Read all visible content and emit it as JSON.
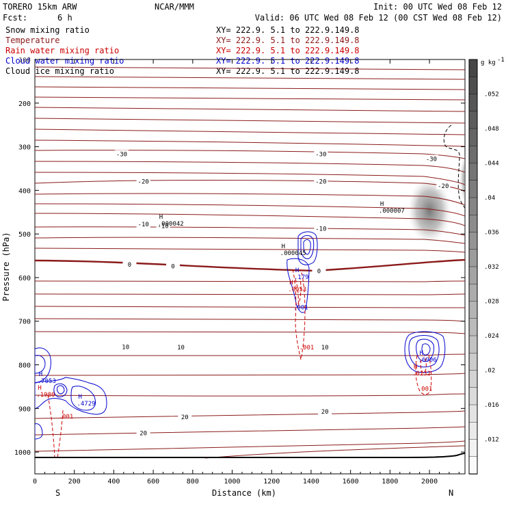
{
  "header": {
    "model": "TORERO  15km ARW",
    "org": "NCAR/MMM",
    "init": "Init: 00 UTC Wed 08 Feb 12",
    "fcst_label": "Fcst:",
    "fcst_value": "6 h",
    "valid": "Valid: 06 UTC Wed 08 Feb 12 (00 CST Wed 08 Feb 12)"
  },
  "legend": [
    {
      "name": "Snow mixing ratio",
      "xy": "XY= 222.9.  5.1 to 222.9.149.8",
      "color": "#000000"
    },
    {
      "name": "Temperature",
      "xy": "XY= 222.9.  5.1 to 222.9.149.8",
      "color": "#8b1a1a"
    },
    {
      "name": "Rain water mixing ratio",
      "xy": "XY= 222.9.  5.1 to 222.9.149.8",
      "color": "#cc0000"
    },
    {
      "name": "Cloud water mixing ratio",
      "xy": "XY= 222.9.  5.1 to 222.9.149.8",
      "color": "#0000cc"
    },
    {
      "name": "Cloud ice mixing ratio",
      "xy": "XY= 222.9.  5.1 to 222.9.149.8",
      "color": "#000000"
    }
  ],
  "chart_data": {
    "type": "contour",
    "xlabel": "Distance (km)",
    "ylabel": "Pressure (hPa)",
    "xlim": [
      0,
      2180
    ],
    "ylim": [
      1050,
      100
    ],
    "x_ticks": [
      0,
      200,
      400,
      600,
      800,
      1000,
      1200,
      1400,
      1600,
      1800,
      2000
    ],
    "y_ticks": [
      200,
      300,
      400,
      500,
      600,
      700,
      800,
      900,
      1000
    ],
    "y_tick_top": "100",
    "x_end_labels": {
      "left": "S",
      "right": "N"
    },
    "colorbar": {
      "unit": "g kg",
      "unit_exp": "-1",
      "ticks": [
        ".052",
        ".048",
        ".044",
        ".04",
        ".036",
        ".032",
        ".028",
        ".024",
        ".02",
        ".016",
        ".012"
      ],
      "tick_values": [
        0.052,
        0.048,
        0.044,
        0.04,
        0.036,
        0.032,
        0.028,
        0.024,
        0.02,
        0.016,
        0.012
      ]
    },
    "temperature_labels": [
      {
        "text": "-30",
        "x": 440,
        "p": 317
      },
      {
        "text": "-30",
        "x": 1450,
        "p": 317
      },
      {
        "text": "-30",
        "x": 2010,
        "p": 328
      },
      {
        "text": "-20",
        "x": 550,
        "p": 380
      },
      {
        "text": "-20",
        "x": 1450,
        "p": 380
      },
      {
        "text": "-20",
        "x": 2070,
        "p": 390
      },
      {
        "text": "-10",
        "x": 550,
        "p": 478
      },
      {
        "text": "-10",
        "x": 650,
        "p": 482
      },
      {
        "text": "-10",
        "x": 1450,
        "p": 488
      },
      {
        "text": "0",
        "x": 480,
        "p": 570
      },
      {
        "text": "0",
        "x": 700,
        "p": 574
      },
      {
        "text": "0",
        "x": 1440,
        "p": 585
      },
      {
        "text": "10",
        "x": 460,
        "p": 759
      },
      {
        "text": "10",
        "x": 740,
        "p": 760
      },
      {
        "text": "10",
        "x": 1470,
        "p": 760
      },
      {
        "text": "20",
        "x": 760,
        "p": 920
      },
      {
        "text": "20",
        "x": 550,
        "p": 957
      },
      {
        "text": "20",
        "x": 1470,
        "p": 907
      }
    ],
    "extrema": [
      {
        "kind": "H",
        "value": ".000042",
        "x": 630,
        "p": 478
      },
      {
        "kind": "H",
        "value": ".000045",
        "x": 1250,
        "p": 545
      },
      {
        "kind": "H",
        "value": ".000007",
        "x": 1750,
        "p": 448
      },
      {
        "kind": "H",
        "value": ".179",
        "x": 1320,
        "p": 600
      },
      {
        "kind": "H",
        "value": ".0053",
        "x": 1290,
        "p": 628
      },
      {
        "kind": "H",
        "value": ".7053",
        "x": 20,
        "p": 838
      },
      {
        "kind": "H",
        "value": ".1980",
        "x": 15,
        "p": 870
      },
      {
        "kind": "H",
        "value": ".4729",
        "x": 220,
        "p": 890
      },
      {
        "kind": "H",
        "value": ".6906",
        "x": 1950,
        "p": 790
      },
      {
        "kind": "H",
        "value": ".0132",
        "x": 1920,
        "p": 821
      }
    ],
    "contour_labels": [
      {
        "text": ".001",
        "x": 1310,
        "p": 668,
        "color": "#0000cc"
      },
      {
        "text": ".001",
        "x": 1340,
        "p": 760,
        "color": "#cc0000"
      },
      {
        "text": ".001",
        "x": 1940,
        "p": 855,
        "color": "#cc0000"
      },
      {
        "text": ".001",
        "x": 120,
        "p": 918,
        "color": "#cc0000"
      }
    ]
  }
}
